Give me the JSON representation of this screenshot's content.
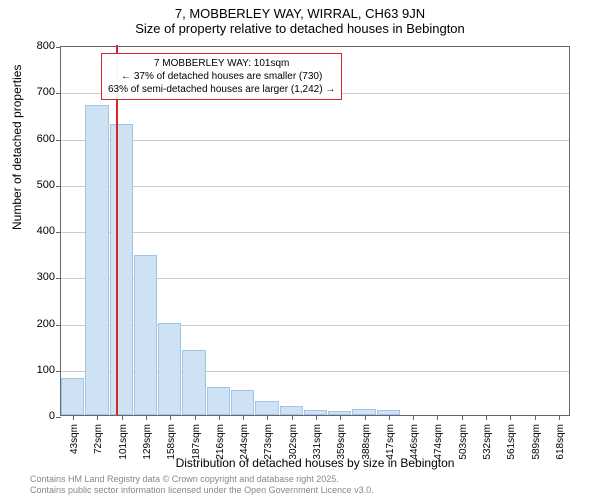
{
  "title": {
    "line1": "7, MOBBERLEY WAY, WIRRAL, CH63 9JN",
    "line2": "Size of property relative to detached houses in Bebington"
  },
  "chart": {
    "type": "histogram",
    "ylabel": "Number of detached properties",
    "xlabel": "Distribution of detached houses by size in Bebington",
    "ylim": [
      0,
      800
    ],
    "ytick_step": 100,
    "yticks": [
      0,
      100,
      200,
      300,
      400,
      500,
      600,
      700,
      800
    ],
    "xtick_labels": [
      "43sqm",
      "72sqm",
      "101sqm",
      "129sqm",
      "158sqm",
      "187sqm",
      "216sqm",
      "244sqm",
      "273sqm",
      "302sqm",
      "331sqm",
      "359sqm",
      "388sqm",
      "417sqm",
      "446sqm",
      "474sqm",
      "503sqm",
      "532sqm",
      "561sqm",
      "589sqm",
      "618sqm"
    ],
    "bar_color": "#cfe2f3",
    "bar_border_color": "#9fc5e8",
    "grid_color": "#cccccc",
    "background_color": "#ffffff",
    "axis_color": "#666666",
    "label_fontsize": 12,
    "tick_fontsize": 11,
    "bars": [
      {
        "label": "43sqm",
        "value": 80
      },
      {
        "label": "72sqm",
        "value": 670
      },
      {
        "label": "101sqm",
        "value": 630
      },
      {
        "label": "129sqm",
        "value": 345
      },
      {
        "label": "158sqm",
        "value": 200
      },
      {
        "label": "187sqm",
        "value": 140
      },
      {
        "label": "216sqm",
        "value": 60
      },
      {
        "label": "244sqm",
        "value": 55
      },
      {
        "label": "273sqm",
        "value": 30
      },
      {
        "label": "302sqm",
        "value": 20
      },
      {
        "label": "331sqm",
        "value": 10
      },
      {
        "label": "359sqm",
        "value": 8
      },
      {
        "label": "388sqm",
        "value": 12
      },
      {
        "label": "417sqm",
        "value": 10
      },
      {
        "label": "446sqm",
        "value": 0
      },
      {
        "label": "474sqm",
        "value": 0
      },
      {
        "label": "503sqm",
        "value": 0
      },
      {
        "label": "532sqm",
        "value": 0
      },
      {
        "label": "561sqm",
        "value": 0
      },
      {
        "label": "589sqm",
        "value": 0
      },
      {
        "label": "618sqm",
        "value": 0
      }
    ],
    "marker": {
      "position_sqm": 101,
      "color": "#d62728",
      "bar_index": 2
    },
    "annotation": {
      "line1": "7 MOBBERLEY WAY: 101sqm",
      "line2": "← 37% of detached houses are smaller (730)",
      "line3": "63% of semi-detached houses are larger (1,242) →",
      "border_color": "#d62728"
    }
  },
  "footer": {
    "line1": "Contains HM Land Registry data © Crown copyright and database right 2025.",
    "line2": "Contains public sector information licensed under the Open Government Licence v3.0."
  }
}
